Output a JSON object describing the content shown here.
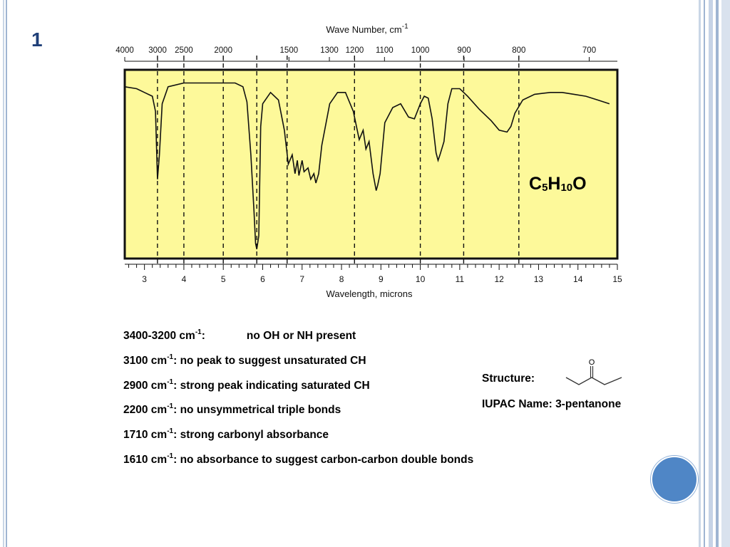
{
  "slide": {
    "number": "1"
  },
  "chart_data": {
    "type": "line",
    "title": "",
    "top_axis_label": "Wave Number, cm",
    "top_axis_label_sup": "-1",
    "xlabel": "Wavelength, microns",
    "ylabel": "",
    "xlim": [
      2.5,
      15
    ],
    "ylim": [
      0,
      100
    ],
    "background": "#fdf99a",
    "line_color": "#111111",
    "bottom_ticks": [
      3,
      4,
      5,
      6,
      7,
      8,
      9,
      10,
      11,
      12,
      13,
      14,
      15
    ],
    "top_ticks": [
      "4000",
      "3000",
      "2500",
      "2000",
      "1500",
      "1300",
      "1200",
      "1100",
      "1000",
      "900",
      "800",
      "700"
    ],
    "marker_lines_microns": [
      3.33,
      4.0,
      5.0,
      5.85,
      6.62,
      8.33,
      10.0,
      11.1,
      12.5
    ],
    "series": [
      {
        "x": [
          2.5,
          2.8,
          3.0,
          3.2,
          3.28,
          3.33,
          3.38,
          3.45,
          3.6,
          4.0,
          4.5,
          5.0,
          5.3,
          5.5,
          5.6,
          5.7,
          5.78,
          5.82,
          5.85,
          5.9,
          5.95,
          6.0,
          6.2,
          6.4,
          6.55,
          6.65,
          6.75,
          6.82,
          6.88,
          6.92,
          7.0,
          7.05,
          7.15,
          7.22,
          7.3,
          7.35,
          7.42,
          7.5,
          7.7,
          7.9,
          8.1,
          8.3,
          8.45,
          8.55,
          8.62,
          8.7,
          8.8,
          8.88,
          8.92,
          8.98,
          9.1,
          9.3,
          9.5,
          9.7,
          9.85,
          10.0,
          10.1,
          10.2,
          10.3,
          10.4,
          10.45,
          10.5,
          10.6,
          10.7,
          10.8,
          11.0,
          11.2,
          11.5,
          11.8,
          12.0,
          12.2,
          12.3,
          12.4,
          12.6,
          12.9,
          13.3,
          13.6,
          13.9,
          14.2,
          14.5,
          14.8
        ],
        "y": [
          91,
          90,
          88,
          86,
          78,
          42,
          55,
          82,
          91,
          93,
          93,
          93,
          93,
          91,
          83,
          55,
          25,
          8,
          5,
          12,
          70,
          82,
          88,
          84,
          68,
          50,
          55,
          45,
          52,
          44,
          52,
          46,
          48,
          42,
          45,
          40,
          45,
          60,
          82,
          88,
          88,
          78,
          63,
          68,
          58,
          62,
          45,
          36,
          39,
          45,
          72,
          80,
          82,
          75,
          74,
          82,
          86,
          85,
          74,
          56,
          52,
          55,
          62,
          82,
          90,
          90,
          86,
          79,
          73,
          68,
          67,
          70,
          77,
          84,
          87,
          88,
          88,
          87,
          86,
          84,
          82
        ]
      }
    ]
  },
  "formula": {
    "c": "C",
    "c_sub": "5",
    "h": "H",
    "h_sub": "10",
    "o": "O"
  },
  "notes": [
    {
      "label": "3400-3200 cm",
      "sup": "-1",
      "colon": ":",
      "text": "no OH or NH present"
    },
    {
      "label": "3100 cm",
      "sup": "-1",
      "colon": ":",
      "text": " no peak to suggest unsaturated CH"
    },
    {
      "label": "2900 cm",
      "sup": "-1",
      "colon": ":",
      "text": " strong peak indicating saturated CH"
    },
    {
      "label": "2200 cm",
      "sup": "-1",
      "colon": ":",
      "text": " no unsymmetrical triple bonds"
    },
    {
      "label": "1710 cm",
      "sup": "-1",
      "colon": ":",
      "text": " strong carbonyl absorbance"
    },
    {
      "label": "1610 cm",
      "sup": "-1",
      "colon": ":",
      "text": " no absorbance to suggest carbon-carbon double bonds"
    }
  ],
  "structure": {
    "label": "Structure:",
    "oxygen": "O"
  },
  "iupac": {
    "label": "IUPAC Name: 3-pentanone"
  },
  "colors": {
    "frame": "#9fb5d2",
    "slide_number": "#1f3f78",
    "circle": "#4f86c6"
  }
}
